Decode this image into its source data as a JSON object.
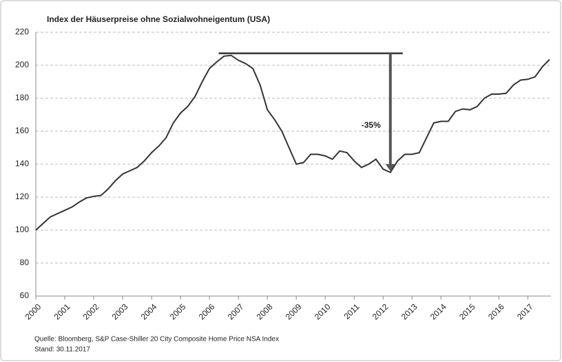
{
  "chart_data": {
    "type": "line",
    "title": "Index der Häuserpreise ohne Sozialwohneigentum (USA)",
    "source": [
      "Quelle: Bloomberg, S&P Case-Shiller 20 City Composite Home Price NSA Index",
      "Stand: 30.11.2017"
    ],
    "annotation": "-35%",
    "x": [
      2000,
      2000.25,
      2000.5,
      2000.75,
      2001,
      2001.25,
      2001.5,
      2001.75,
      2002,
      2002.25,
      2002.5,
      2002.75,
      2003,
      2003.25,
      2003.5,
      2003.75,
      2004,
      2004.25,
      2004.5,
      2004.75,
      2005,
      2005.25,
      2005.5,
      2005.75,
      2006,
      2006.25,
      2006.5,
      2006.75,
      2007,
      2007.25,
      2007.5,
      2007.75,
      2008,
      2008.25,
      2008.5,
      2008.75,
      2009,
      2009.25,
      2009.5,
      2009.75,
      2010,
      2010.25,
      2010.5,
      2010.75,
      2011,
      2011.25,
      2011.5,
      2011.75,
      2012,
      2012.25,
      2012.5,
      2012.75,
      2013,
      2013.25,
      2013.5,
      2013.75,
      2014,
      2014.25,
      2014.5,
      2014.75,
      2015,
      2015.25,
      2015.5,
      2015.75,
      2016,
      2016.25,
      2016.5,
      2016.75,
      2017,
      2017.25,
      2017.5,
      2017.75
    ],
    "series": [
      {
        "name": "Index",
        "color": "#333333",
        "values": [
          100,
          104,
          108,
          110,
          112,
          114,
          117,
          119.5,
          120.5,
          121,
          125,
          130,
          134,
          136,
          138,
          142,
          147,
          151,
          156,
          165,
          171,
          175,
          181,
          190,
          198,
          202,
          205.5,
          206,
          203,
          201,
          198,
          188,
          173,
          167,
          160,
          150,
          140,
          141,
          146,
          146,
          145,
          143,
          148,
          147,
          142,
          138,
          140,
          143,
          137,
          135,
          142,
          146,
          146,
          147,
          156,
          165,
          166,
          166,
          172,
          173.5,
          173,
          175,
          180,
          182.5,
          182.5,
          183,
          188,
          191,
          191.5,
          193,
          199,
          203.5
        ]
      }
    ],
    "xlim": [
      2000,
      2017.8
    ],
    "xticks": [
      2000,
      2001,
      2002,
      2003,
      2004,
      2005,
      2006,
      2007,
      2008,
      2009,
      2010,
      2011,
      2012,
      2013,
      2014,
      2015,
      2016,
      2017
    ],
    "ylim": [
      60,
      220
    ],
    "yticks": [
      60,
      80,
      100,
      120,
      140,
      160,
      180,
      200,
      220
    ],
    "grid": true
  }
}
